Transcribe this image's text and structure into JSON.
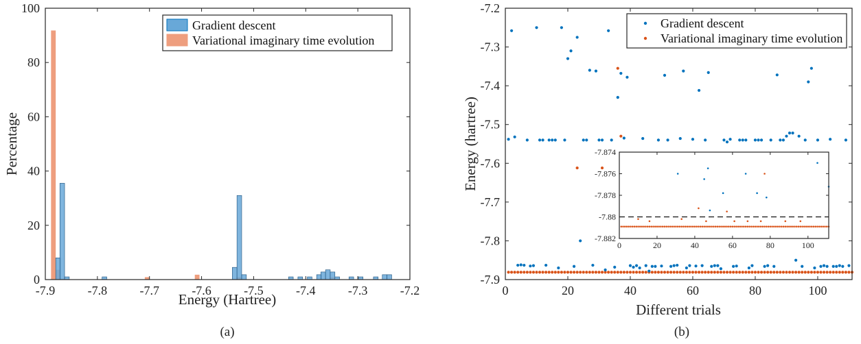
{
  "colors": {
    "gd": "#0072BD",
    "gd_fill": "#68A8D8",
    "vite": "#D95319",
    "vite_fill": "#EE9E7E",
    "overlap": "#93634E"
  },
  "legend": {
    "gd": "Gradient descent",
    "vite": "Variational imaginary time evolution"
  },
  "chart_data": [
    {
      "type": "bar",
      "caption": "(a)",
      "xlabel": "Energy (Hartree)",
      "ylabel": "Percentage",
      "xlim": [
        -7.9,
        -7.2
      ],
      "ylim": [
        0,
        100
      ],
      "xticks": [
        -7.9,
        -7.8,
        -7.7,
        -7.6,
        -7.5,
        -7.4,
        -7.3,
        -7.2
      ],
      "xtick_labels": [
        "-7.9",
        "-7.8",
        "-7.7",
        "-7.6",
        "-7.5",
        "-7.4",
        "-7.3",
        "-7.2"
      ],
      "yticks": [
        0,
        20,
        40,
        60,
        80,
        100
      ],
      "ytick_labels": [
        "0",
        "20",
        "40",
        "60",
        "80",
        "100"
      ],
      "legend_position": "top-right",
      "bin_width": 0.009,
      "series": [
        {
          "name": "Gradient descent",
          "bins": [
            [
              -7.88,
              8
            ],
            [
              -7.872,
              35.5
            ],
            [
              -7.863,
              1
            ],
            [
              -7.791,
              1
            ],
            [
              -7.541,
              4.5
            ],
            [
              -7.532,
              31
            ],
            [
              -7.523,
              1.8
            ],
            [
              -7.433,
              1
            ],
            [
              -7.415,
              1
            ],
            [
              -7.397,
              1
            ],
            [
              -7.379,
              1.8
            ],
            [
              -7.371,
              2.8
            ],
            [
              -7.362,
              3.6
            ],
            [
              -7.353,
              2.8
            ],
            [
              -7.344,
              1
            ],
            [
              -7.317,
              1
            ],
            [
              -7.299,
              1
            ],
            [
              -7.27,
              1
            ],
            [
              -7.253,
              1.8
            ],
            [
              -7.244,
              1.8
            ]
          ]
        },
        {
          "name": "Variational imaginary time evolution",
          "bins": [
            [
              -7.889,
              91.8
            ],
            [
              -7.88,
              3.6
            ],
            [
              -7.709,
              0.9
            ],
            [
              -7.613,
              1.8
            ],
            [
              -7.533,
              0.9
            ],
            [
              -7.353,
              0.9
            ]
          ]
        }
      ]
    },
    {
      "type": "scatter",
      "caption": "(b)",
      "xlabel": "Different trials",
      "ylabel": "Energy (hartree)",
      "xlim": [
        0,
        111
      ],
      "ylim": [
        -7.9,
        -7.2
      ],
      "xticks": [
        0,
        20,
        40,
        60,
        80,
        100
      ],
      "xtick_labels": [
        "0",
        "20",
        "40",
        "60",
        "80",
        "100"
      ],
      "yticks": [
        -7.9,
        -7.8,
        -7.7,
        -7.6,
        -7.5,
        -7.4,
        -7.3,
        -7.2
      ],
      "ytick_labels": [
        "-7.9",
        "-7.8",
        "-7.7",
        "-7.6",
        "-7.5",
        "-7.4",
        "-7.3",
        "-7.2"
      ],
      "legend_position": "top-right",
      "series": [
        {
          "name": "Gradient descent",
          "points": [
            [
              1,
              -7.538
            ],
            [
              2,
              -7.258
            ],
            [
              3,
              -7.532
            ],
            [
              4,
              -7.863
            ],
            [
              5,
              -7.862
            ],
            [
              6,
              -7.863
            ],
            [
              7,
              -7.54
            ],
            [
              8,
              -7.865
            ],
            [
              9,
              -7.864
            ],
            [
              10,
              -7.25
            ],
            [
              11,
              -7.54
            ],
            [
              12,
              -7.54
            ],
            [
              13,
              -7.863
            ],
            [
              14,
              -7.54
            ],
            [
              15,
              -7.54
            ],
            [
              16,
              -7.54
            ],
            [
              17,
              -7.87
            ],
            [
              18,
              -7.25
            ],
            [
              19,
              -7.54
            ],
            [
              20,
              -7.33
            ],
            [
              21,
              -7.31
            ],
            [
              22,
              -7.866
            ],
            [
              23,
              -7.275
            ],
            [
              24,
              -7.8
            ],
            [
              25,
              -7.54
            ],
            [
              26,
              -7.54
            ],
            [
              27,
              -7.36
            ],
            [
              28,
              -7.863
            ],
            [
              29,
              -7.362
            ],
            [
              30,
              -7.54
            ],
            [
              31,
              -7.54
            ],
            [
              32,
              -7.875
            ],
            [
              33,
              -7.258
            ],
            [
              34,
              -7.54
            ],
            [
              35,
              -7.868
            ],
            [
              36,
              -7.43
            ],
            [
              37,
              -7.368
            ],
            [
              38,
              -7.535
            ],
            [
              39,
              -7.378
            ],
            [
              40,
              -7.864
            ],
            [
              41,
              -7.868
            ],
            [
              42,
              -7.864
            ],
            [
              43,
              -7.87
            ],
            [
              44,
              -7.536
            ],
            [
              45,
              -7.864
            ],
            [
              46,
              -7.878
            ],
            [
              47,
              -7.866
            ],
            [
              48,
              -7.866
            ],
            [
              49,
              -7.54
            ],
            [
              50,
              -7.865
            ],
            [
              51,
              -7.373
            ],
            [
              52,
              -7.54
            ],
            [
              53,
              -7.866
            ],
            [
              54,
              -7.864
            ],
            [
              55,
              -7.863
            ],
            [
              56,
              -7.536
            ],
            [
              57,
              -7.362
            ],
            [
              58,
              -7.87
            ],
            [
              59,
              -7.864
            ],
            [
              60,
              -7.538
            ],
            [
              61,
              -7.865
            ],
            [
              62,
              -7.412
            ],
            [
              63,
              -7.864
            ],
            [
              64,
              -7.54
            ],
            [
              65,
              -7.366
            ],
            [
              66,
              -7.866
            ],
            [
              67,
              -7.864
            ],
            [
              68,
              -7.864
            ],
            [
              69,
              -7.872
            ],
            [
              70,
              -7.54
            ],
            [
              71,
              -7.545
            ],
            [
              72,
              -7.538
            ],
            [
              73,
              -7.866
            ],
            [
              74,
              -7.865
            ],
            [
              75,
              -7.54
            ],
            [
              76,
              -7.54
            ],
            [
              77,
              -7.54
            ],
            [
              78,
              -7.87
            ],
            [
              79,
              -7.864
            ],
            [
              80,
              -7.54
            ],
            [
              81,
              -7.54
            ],
            [
              82,
              -7.54
            ],
            [
              83,
              -7.866
            ],
            [
              84,
              -7.864
            ],
            [
              85,
              -7.54
            ],
            [
              86,
              -7.866
            ],
            [
              87,
              -7.372
            ],
            [
              88,
              -7.54
            ],
            [
              89,
              -7.54
            ],
            [
              90,
              -7.53
            ],
            [
              91,
              -7.522
            ],
            [
              92,
              -7.522
            ],
            [
              93,
              -7.85
            ],
            [
              94,
              -7.53
            ],
            [
              95,
              -7.866
            ],
            [
              96,
              -7.54
            ],
            [
              97,
              -7.39
            ],
            [
              98,
              -7.355
            ],
            [
              99,
              -7.87
            ],
            [
              100,
              -7.54
            ],
            [
              101,
              -7.866
            ],
            [
              102,
              -7.864
            ],
            [
              103,
              -7.866
            ],
            [
              104,
              -7.538
            ],
            [
              105,
              -7.866
            ],
            [
              106,
              -7.866
            ],
            [
              107,
              -7.864
            ],
            [
              108,
              -7.866
            ],
            [
              109,
              -7.54
            ],
            [
              110,
              -7.864
            ]
          ]
        },
        {
          "name": "Variational imaginary time evolution",
          "points": [
            [
              23,
              -7.612
            ],
            [
              31,
              -7.612
            ],
            [
              36,
              -7.355
            ],
            [
              37,
              -7.53
            ]
          ],
          "baseline": {
            "y": -7.881,
            "x_from": 1,
            "x_to": 111
          }
        }
      ],
      "inset": {
        "xlim": [
          0,
          111
        ],
        "ylim": [
          -7.882,
          -7.874
        ],
        "xticks": [
          0,
          20,
          40,
          60,
          80,
          100
        ],
        "xtick_labels": [
          "0",
          "20",
          "40",
          "60",
          "80",
          "100"
        ],
        "yticks": [
          -7.882,
          -7.88,
          -7.878,
          -7.876,
          -7.874
        ],
        "ytick_labels": [
          "-7.882",
          "-7.88",
          "-7.878",
          "-7.876",
          "-7.874"
        ],
        "reference_line_y": -7.88,
        "gd_points": [
          [
            31,
            -7.876
          ],
          [
            45,
            -7.8765
          ],
          [
            47,
            -7.8755
          ],
          [
            48,
            -7.8794
          ],
          [
            55,
            -7.8778
          ],
          [
            67,
            -7.876
          ],
          [
            73,
            -7.8778
          ],
          [
            78,
            -7.8782
          ],
          [
            105,
            -7.875
          ],
          [
            111,
            -7.8772
          ]
        ],
        "vite_points": [
          [
            10,
            -7.8802
          ],
          [
            16,
            -7.8804
          ],
          [
            33,
            -7.8802
          ],
          [
            42,
            -7.8792
          ],
          [
            46,
            -7.8804
          ],
          [
            57,
            -7.8795
          ],
          [
            61,
            -7.8804
          ],
          [
            68,
            -7.8804
          ],
          [
            75,
            -7.8804
          ],
          [
            77,
            -7.876
          ],
          [
            88,
            -7.8804
          ],
          [
            96,
            -7.8804
          ]
        ],
        "vite_baseline_y": -7.8809
      }
    }
  ]
}
